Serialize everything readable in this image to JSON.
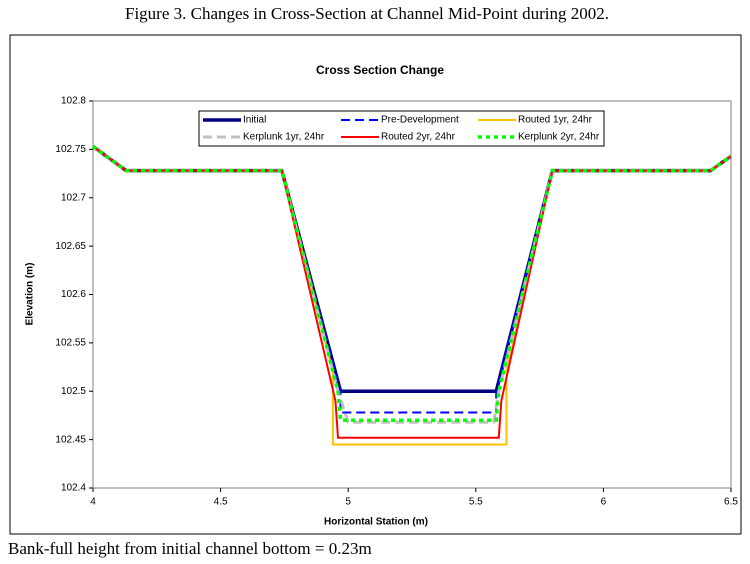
{
  "caption": "Figure 3.  Changes in Cross-Section at Channel Mid-Point during 2002.",
  "note": "Bank-full height from initial channel bottom = 0.23m",
  "chart_data": {
    "type": "line",
    "title": "Cross Section Change",
    "x_label": "Horizontal Station (m)",
    "y_label": "Elevation (m)",
    "xlim": [
      4,
      6.5
    ],
    "xticks": [
      4,
      4.5,
      5,
      5.5,
      6,
      6.5
    ],
    "ylim": [
      102.4,
      102.8
    ],
    "yticks": [
      102.4,
      102.45,
      102.5,
      102.55,
      102.6,
      102.65,
      102.7,
      102.75,
      102.8
    ],
    "grid": false,
    "legend": "top",
    "series": [
      {
        "name": "Initial",
        "color": "#000080",
        "dash": "solid",
        "width": 3.5,
        "x": [
          4,
          4.13,
          4.74,
          4.97,
          5.58,
          5.8,
          6.42,
          6.5
        ],
        "values": [
          102.753,
          102.728,
          102.728,
          102.5,
          102.5,
          102.728,
          102.728,
          102.743
        ]
      },
      {
        "name": "Pre-Development",
        "color": "#0000ff",
        "dash": "dashed",
        "width": 2,
        "x": [
          4,
          4.13,
          4.74,
          4.97,
          4.97,
          5.58,
          5.58,
          5.8,
          6.42,
          6.5
        ],
        "values": [
          102.753,
          102.728,
          102.728,
          102.5,
          102.478,
          102.478,
          102.5,
          102.728,
          102.728,
          102.743
        ]
      },
      {
        "name": "Routed 1yr, 24hr",
        "color": "#ffc000",
        "dash": "solid",
        "width": 2,
        "x": [
          4,
          4.13,
          4.74,
          4.94,
          4.94,
          5.62,
          5.62,
          5.8,
          6.42,
          6.5
        ],
        "values": [
          102.753,
          102.728,
          102.728,
          102.52,
          102.445,
          102.445,
          102.52,
          102.728,
          102.728,
          102.743
        ]
      },
      {
        "name": "Kerplunk 1yr, 24hr",
        "color": "#c0c0c0",
        "dash": "dashed",
        "width": 3,
        "x": [
          4,
          4.13,
          4.74,
          4.96,
          5.0,
          5.57,
          5.59,
          5.8,
          6.42,
          6.5
        ],
        "values": [
          102.753,
          102.728,
          102.728,
          102.5,
          102.468,
          102.468,
          102.5,
          102.728,
          102.728,
          102.743
        ]
      },
      {
        "name": "Routed 2yr, 24hr",
        "color": "#ff0000",
        "dash": "solid",
        "width": 2,
        "x": [
          4,
          4.13,
          4.74,
          4.95,
          4.96,
          5.59,
          5.6,
          5.8,
          6.42,
          6.5
        ],
        "values": [
          102.753,
          102.728,
          102.728,
          102.49,
          102.452,
          102.452,
          102.49,
          102.728,
          102.728,
          102.743
        ]
      },
      {
        "name": "Kerplunk 2yr, 24hr",
        "color": "#00ff00",
        "dash": "dotted",
        "width": 3.5,
        "x": [
          4,
          4.13,
          4.74,
          4.96,
          4.97,
          5.58,
          5.59,
          5.8,
          6.42,
          6.5
        ],
        "values": [
          102.753,
          102.728,
          102.728,
          102.5,
          102.47,
          102.47,
          102.5,
          102.728,
          102.728,
          102.743
        ]
      }
    ]
  }
}
